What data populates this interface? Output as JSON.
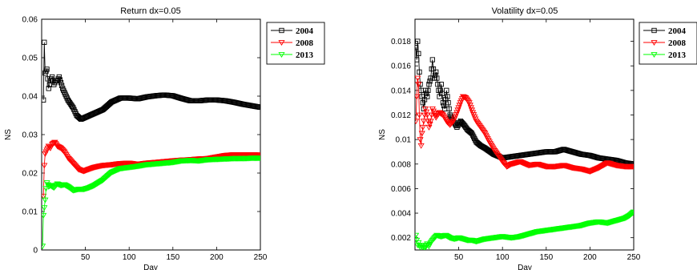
{
  "chart_data": [
    {
      "type": "line",
      "title": "Return dx=0.05",
      "xlabel": "Day",
      "ylabel": "NS",
      "xlim": [
        0,
        250
      ],
      "ylim": [
        0,
        0.06
      ],
      "xticks": [
        0,
        50,
        100,
        150,
        200,
        250
      ],
      "yticks": [
        0,
        0.01,
        0.02,
        0.03,
        0.04,
        0.05,
        0.06
      ],
      "xtick_labels": [
        "",
        "50",
        "100",
        "150",
        "200",
        "250"
      ],
      "ytick_labels": [
        "0",
        "0.01",
        "0.02",
        "0.03",
        "0.04",
        "0.05",
        "0.06"
      ],
      "grid": false,
      "legend": "outside-top-right",
      "series": [
        {
          "name": "2004",
          "color": "#000000",
          "marker": "square",
          "x": [
            2,
            3,
            4,
            6,
            8,
            10,
            12,
            14,
            16,
            18,
            20,
            24,
            30,
            36,
            40,
            45,
            50,
            55,
            60,
            70,
            80,
            90,
            100,
            110,
            120,
            130,
            140,
            150,
            160,
            170,
            180,
            190,
            200,
            210,
            220,
            230,
            240,
            250
          ],
          "y": [
            0.039,
            0.054,
            0.046,
            0.047,
            0.042,
            0.044,
            0.045,
            0.043,
            0.044,
            0.044,
            0.045,
            0.042,
            0.039,
            0.037,
            0.035,
            0.034,
            0.0345,
            0.035,
            0.0355,
            0.0365,
            0.0385,
            0.0395,
            0.0395,
            0.0393,
            0.0398,
            0.0401,
            0.0403,
            0.0401,
            0.0394,
            0.0388,
            0.0388,
            0.039,
            0.039,
            0.0388,
            0.0384,
            0.0379,
            0.0375,
            0.0371
          ]
        },
        {
          "name": "2008",
          "color": "#ff0000",
          "marker": "triangle-down",
          "x": [
            2,
            3,
            4,
            6,
            8,
            10,
            12,
            15,
            18,
            22,
            26,
            30,
            36,
            42,
            48,
            54,
            60,
            70,
            80,
            90,
            100,
            110,
            120,
            130,
            140,
            150,
            160,
            170,
            180,
            190,
            200,
            210,
            220,
            230,
            240,
            250
          ],
          "y": [
            0.014,
            0.022,
            0.025,
            0.026,
            0.027,
            0.0265,
            0.0275,
            0.028,
            0.027,
            0.0265,
            0.0255,
            0.024,
            0.0225,
            0.021,
            0.0205,
            0.021,
            0.0215,
            0.022,
            0.0222,
            0.0225,
            0.0226,
            0.0223,
            0.0226,
            0.0228,
            0.023,
            0.0232,
            0.0234,
            0.0235,
            0.0237,
            0.0238,
            0.0242,
            0.0246,
            0.0248,
            0.0248,
            0.0248,
            0.0247
          ]
        },
        {
          "name": "2013",
          "color": "#00ff00",
          "marker": "triangle-down",
          "x": [
            1,
            2,
            3,
            4,
            5,
            6,
            8,
            10,
            14,
            18,
            22,
            26,
            30,
            36,
            42,
            48,
            54,
            60,
            70,
            80,
            90,
            100,
            110,
            120,
            130,
            140,
            150,
            160,
            170,
            180,
            190,
            200,
            210,
            220,
            230,
            240,
            250
          ],
          "y": [
            0.001,
            0.009,
            0.011,
            0.013,
            0.016,
            0.0175,
            0.0165,
            0.0168,
            0.0162,
            0.0172,
            0.0168,
            0.017,
            0.0165,
            0.0155,
            0.0158,
            0.0158,
            0.0162,
            0.0168,
            0.0182,
            0.0202,
            0.0212,
            0.0215,
            0.0218,
            0.0222,
            0.0224,
            0.0226,
            0.0228,
            0.0232,
            0.0233,
            0.0232,
            0.0235,
            0.0236,
            0.0237,
            0.0238,
            0.0238,
            0.0239,
            0.0239
          ]
        }
      ]
    },
    {
      "type": "line",
      "title": "Volatility dx=0.05",
      "xlabel": "Day",
      "ylabel": "NS",
      "xlim": [
        0,
        250
      ],
      "ylim": [
        0.001,
        0.0198
      ],
      "xticks": [
        0,
        50,
        100,
        150,
        200,
        250
      ],
      "yticks": [
        0.002,
        0.004,
        0.006,
        0.008,
        0.01,
        0.012,
        0.014,
        0.016,
        0.018
      ],
      "xtick_labels": [
        "",
        "50",
        "100",
        "150",
        "200",
        "250"
      ],
      "ytick_labels": [
        "0.002",
        "0.004",
        "0.006",
        "0.008",
        "0.01",
        "0.012",
        "0.014",
        "0.016",
        "0.018"
      ],
      "grid": false,
      "legend": "outside-top-right",
      "series": [
        {
          "name": "2004",
          "color": "#000000",
          "marker": "square",
          "x": [
            1,
            2,
            3,
            4,
            5,
            6,
            8,
            10,
            12,
            14,
            16,
            18,
            20,
            22,
            24,
            26,
            28,
            30,
            32,
            34,
            36,
            38,
            40,
            44,
            48,
            52,
            56,
            60,
            65,
            70,
            75,
            80,
            90,
            100,
            110,
            120,
            130,
            140,
            150,
            160,
            170,
            180,
            190,
            200,
            210,
            220,
            230,
            240,
            250
          ],
          "y": [
            0.0175,
            0.0165,
            0.018,
            0.017,
            0.0155,
            0.0145,
            0.0135,
            0.0125,
            0.014,
            0.0135,
            0.0145,
            0.015,
            0.0165,
            0.015,
            0.0155,
            0.0145,
            0.0135,
            0.0145,
            0.013,
            0.0125,
            0.014,
            0.013,
            0.012,
            0.0115,
            0.011,
            0.0115,
            0.0112,
            0.0108,
            0.0105,
            0.0098,
            0.0095,
            0.0093,
            0.0088,
            0.0085,
            0.0086,
            0.0087,
            0.0088,
            0.0089,
            0.009,
            0.009,
            0.0092,
            0.009,
            0.0088,
            0.0087,
            0.0085,
            0.0084,
            0.0083,
            0.0081,
            0.008
          ]
        },
        {
          "name": "2008",
          "color": "#ff0000",
          "marker": "triangle-down",
          "x": [
            1,
            2,
            3,
            4,
            5,
            6,
            7,
            8,
            10,
            12,
            14,
            16,
            18,
            20,
            24,
            28,
            32,
            36,
            40,
            44,
            48,
            52,
            55,
            58,
            62,
            66,
            70,
            75,
            80,
            85,
            90,
            95,
            100,
            105,
            110,
            120,
            130,
            140,
            150,
            160,
            170,
            180,
            190,
            200,
            210,
            220,
            230,
            240,
            250
          ],
          "y": [
            0.0115,
            0.0135,
            0.015,
            0.0145,
            0.012,
            0.01,
            0.0095,
            0.0105,
            0.0115,
            0.0125,
            0.012,
            0.011,
            0.0115,
            0.0125,
            0.0118,
            0.0122,
            0.012,
            0.0115,
            0.0112,
            0.0115,
            0.0122,
            0.013,
            0.0135,
            0.0134,
            0.013,
            0.0122,
            0.0115,
            0.011,
            0.0105,
            0.0098,
            0.0092,
            0.0087,
            0.0082,
            0.0078,
            0.008,
            0.0082,
            0.0079,
            0.008,
            0.0078,
            0.0078,
            0.0079,
            0.0077,
            0.0076,
            0.0074,
            0.0077,
            0.0081,
            0.0079,
            0.0078,
            0.0078
          ]
        },
        {
          "name": "2013",
          "color": "#00ff00",
          "marker": "triangle-down",
          "x": [
            1,
            2,
            3,
            4,
            6,
            8,
            10,
            12,
            14,
            16,
            18,
            20,
            25,
            30,
            35,
            40,
            45,
            50,
            55,
            60,
            65,
            70,
            75,
            80,
            90,
            100,
            110,
            120,
            130,
            140,
            150,
            160,
            170,
            180,
            190,
            200,
            210,
            220,
            230,
            240,
            245,
            250
          ],
          "y": [
            0.0022,
            0.0018,
            0.0014,
            0.0016,
            0.0012,
            0.0014,
            0.0011,
            0.0012,
            0.0015,
            0.0013,
            0.0016,
            0.0018,
            0.0022,
            0.0021,
            0.0022,
            0.002,
            0.0019,
            0.002,
            0.0019,
            0.0018,
            0.0018,
            0.0017,
            0.0018,
            0.0019,
            0.002,
            0.0021,
            0.002,
            0.0021,
            0.0023,
            0.0025,
            0.0026,
            0.0027,
            0.0028,
            0.0029,
            0.003,
            0.0032,
            0.0033,
            0.0032,
            0.0034,
            0.0036,
            0.0038,
            0.0041
          ]
        }
      ]
    }
  ]
}
